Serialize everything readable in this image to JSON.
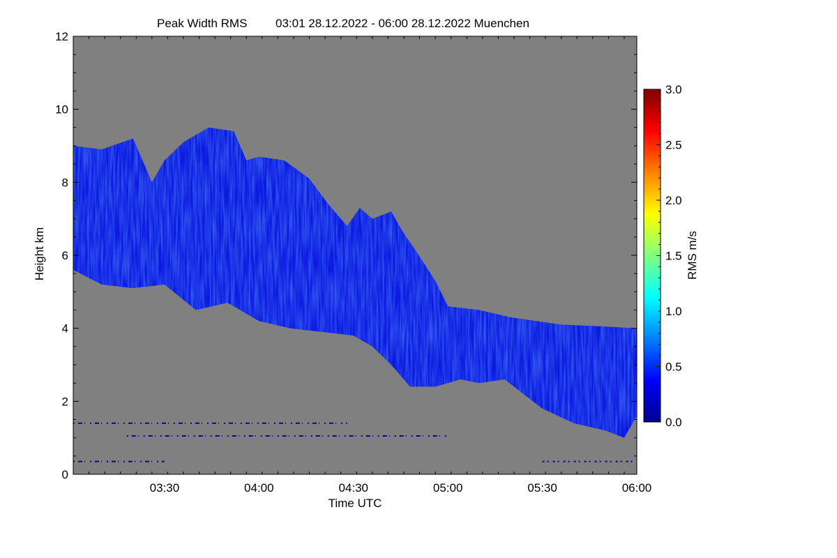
{
  "chart_data": {
    "type": "heatmap",
    "title": "Peak Width RMS",
    "title_period": "03:01 28.12.2022 - 06:00 28.12.2022 Muenchen",
    "xlabel": "Time UTC",
    "ylabel": "Height km",
    "x_range": [
      "03:01",
      "06:00"
    ],
    "x_range_minutes": [
      181,
      360
    ],
    "y_range": [
      0,
      12
    ],
    "x_ticks": [
      {
        "label": "03:30",
        "minutes": 210
      },
      {
        "label": "04:00",
        "minutes": 240
      },
      {
        "label": "04:30",
        "minutes": 270
      },
      {
        "label": "05:00",
        "minutes": 300
      },
      {
        "label": "05:30",
        "minutes": 330
      },
      {
        "label": "06:00",
        "minutes": 360
      }
    ],
    "y_ticks": [
      "0",
      "2",
      "4",
      "6",
      "8",
      "10",
      "12"
    ],
    "y_tick_values": [
      0,
      2,
      4,
      6,
      8,
      10,
      12
    ],
    "colorbar": {
      "label": "RMS m/s",
      "range": [
        0,
        3
      ],
      "ticks": [
        "0.0",
        "0.5",
        "1.0",
        "1.5",
        "2.0",
        "2.5",
        "3.0"
      ],
      "tick_values": [
        0,
        0.5,
        1,
        1.5,
        2,
        2.5,
        3
      ],
      "colormap": [
        "#00008f",
        "#0000ff",
        "#0080ff",
        "#00ffff",
        "#80ff80",
        "#ffff00",
        "#ff8000",
        "#ff0000",
        "#800000"
      ]
    },
    "background_color": "#808080",
    "cloud_color": "#0a1ae0",
    "cloud_region": {
      "upper_boundary": [
        {
          "t": 181,
          "h": 9.0
        },
        {
          "t": 190,
          "h": 8.9
        },
        {
          "t": 200,
          "h": 9.2
        },
        {
          "t": 206,
          "h": 8.0
        },
        {
          "t": 210,
          "h": 8.6
        },
        {
          "t": 216,
          "h": 9.1
        },
        {
          "t": 224,
          "h": 9.5
        },
        {
          "t": 232,
          "h": 9.4
        },
        {
          "t": 236,
          "h": 8.6
        },
        {
          "t": 240,
          "h": 8.7
        },
        {
          "t": 248,
          "h": 8.6
        },
        {
          "t": 256,
          "h": 8.1
        },
        {
          "t": 262,
          "h": 7.4
        },
        {
          "t": 268,
          "h": 6.8
        },
        {
          "t": 272,
          "h": 7.3
        },
        {
          "t": 276,
          "h": 7.0
        },
        {
          "t": 282,
          "h": 7.2
        },
        {
          "t": 286,
          "h": 6.6
        },
        {
          "t": 290,
          "h": 6.1
        },
        {
          "t": 296,
          "h": 5.3
        },
        {
          "t": 300,
          "h": 4.6
        },
        {
          "t": 310,
          "h": 4.5
        },
        {
          "t": 320,
          "h": 4.3
        },
        {
          "t": 336,
          "h": 4.1
        },
        {
          "t": 350,
          "h": 4.05
        },
        {
          "t": 360,
          "h": 4.0
        }
      ],
      "lower_boundary": [
        {
          "t": 181,
          "h": 5.6
        },
        {
          "t": 190,
          "h": 5.2
        },
        {
          "t": 200,
          "h": 5.1
        },
        {
          "t": 210,
          "h": 5.2
        },
        {
          "t": 220,
          "h": 4.5
        },
        {
          "t": 230,
          "h": 4.7
        },
        {
          "t": 240,
          "h": 4.2
        },
        {
          "t": 250,
          "h": 4.0
        },
        {
          "t": 260,
          "h": 3.9
        },
        {
          "t": 270,
          "h": 3.8
        },
        {
          "t": 276,
          "h": 3.5
        },
        {
          "t": 282,
          "h": 3.0
        },
        {
          "t": 288,
          "h": 2.4
        },
        {
          "t": 296,
          "h": 2.4
        },
        {
          "t": 304,
          "h": 2.6
        },
        {
          "t": 310,
          "h": 2.5
        },
        {
          "t": 318,
          "h": 2.6
        },
        {
          "t": 324,
          "h": 2.2
        },
        {
          "t": 330,
          "h": 1.8
        },
        {
          "t": 340,
          "h": 1.4
        },
        {
          "t": 350,
          "h": 1.2
        },
        {
          "t": 356,
          "h": 1.0
        },
        {
          "t": 360,
          "h": 1.6
        }
      ]
    },
    "noise_bands_km": [
      1.4,
      1.05,
      0.35
    ]
  }
}
